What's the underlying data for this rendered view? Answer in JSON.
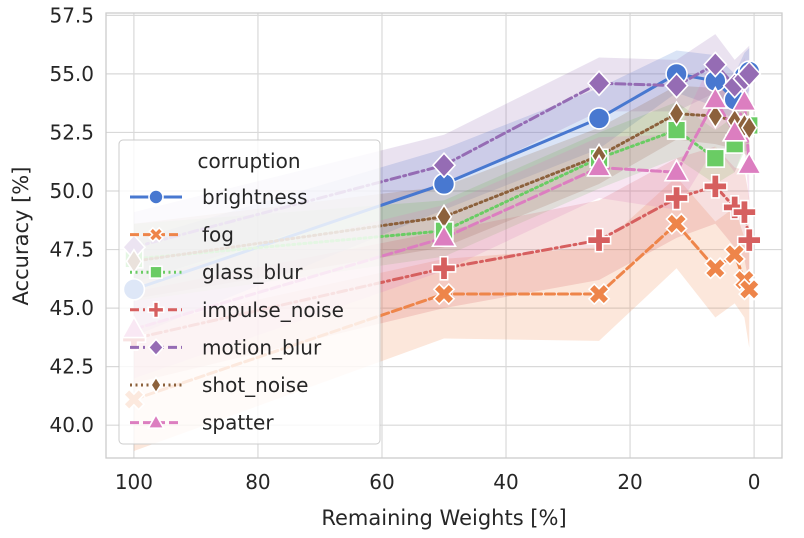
{
  "chart_data": {
    "type": "line",
    "xlabel": "Remaining Weights [%]",
    "ylabel": "Accuracy [%]",
    "x_reversed": true,
    "xlim": [
      104.5,
      -4.5
    ],
    "ylim": [
      38.6,
      57.6
    ],
    "xticks": [
      "100",
      "80",
      "60",
      "40",
      "20",
      "0"
    ],
    "xtick_values": [
      100,
      80,
      60,
      40,
      20,
      0
    ],
    "yticks": [
      "40.0",
      "42.5",
      "45.0",
      "47.5",
      "50.0",
      "52.5",
      "55.0",
      "57.5"
    ],
    "ytick_values": [
      40.0,
      42.5,
      45.0,
      47.5,
      50.0,
      52.5,
      55.0,
      57.5
    ],
    "grid": true,
    "legend_title": "corruption",
    "legend_position": "center-left",
    "x": [
      100,
      50,
      25,
      12.5,
      6.25,
      3.13,
      1.56,
      0.78
    ],
    "series": [
      {
        "name": "brightness",
        "color": "#4878d0",
        "dash": "solid",
        "marker": "circle",
        "values": [
          45.8,
          50.3,
          53.1,
          55.0,
          54.7,
          53.9,
          54.9,
          55.1
        ],
        "ci_low": [
          43.8,
          49.2,
          51.8,
          54.2,
          53.6,
          53.0,
          53.9,
          54.3
        ],
        "ci_high": [
          47.9,
          51.8,
          54.4,
          56.0,
          55.8,
          55.0,
          55.9,
          56.1
        ]
      },
      {
        "name": "fog",
        "color": "#ee854a",
        "dash": "dashed",
        "marker": "x",
        "values": [
          41.1,
          45.6,
          45.6,
          48.6,
          46.7,
          47.3,
          46.2,
          45.8
        ],
        "ci_low": [
          38.9,
          43.7,
          43.6,
          46.7,
          44.6,
          45.2,
          44.6,
          43.3
        ],
        "ci_high": [
          44.2,
          47.1,
          47.6,
          50.6,
          48.7,
          49.3,
          48.0,
          47.6
        ]
      },
      {
        "name": "glass_blur",
        "color": "#6acc64",
        "dash": "dotted",
        "marker": "square",
        "values": [
          47.1,
          48.3,
          51.4,
          52.6,
          51.4,
          52.0,
          52.7,
          52.8
        ],
        "ci_low": [
          45.3,
          47.2,
          50.1,
          51.4,
          50.3,
          50.8,
          51.7,
          51.7
        ],
        "ci_high": [
          48.6,
          49.6,
          52.5,
          53.8,
          52.6,
          53.2,
          53.9,
          53.9
        ]
      },
      {
        "name": "impulse_noise",
        "color": "#d65f5f",
        "dash": "dashdot",
        "marker": "plus",
        "values": [
          43.7,
          46.7,
          47.9,
          49.7,
          50.2,
          49.3,
          49.1,
          47.9
        ],
        "ci_low": [
          41.8,
          45.0,
          46.2,
          48.0,
          48.6,
          47.6,
          47.1,
          46.0
        ],
        "ci_high": [
          45.7,
          48.3,
          49.6,
          51.4,
          51.9,
          51.0,
          50.9,
          49.7
        ]
      },
      {
        "name": "motion_blur",
        "color": "#956cb4",
        "dash": "dashdot",
        "marker": "diamond",
        "values": [
          47.6,
          51.1,
          54.6,
          54.5,
          55.4,
          54.5,
          54.8,
          55.0
        ],
        "ci_low": [
          46.1,
          50.2,
          53.4,
          53.4,
          54.2,
          53.5,
          53.6,
          53.9
        ],
        "ci_high": [
          49.1,
          52.4,
          55.7,
          55.6,
          56.7,
          55.6,
          56.0,
          56.2
        ]
      },
      {
        "name": "shot_noise",
        "color": "#8c613c",
        "dash": "dotted",
        "marker": "thin_diamond",
        "values": [
          47.0,
          48.9,
          51.5,
          53.3,
          53.2,
          53.0,
          52.8,
          52.7
        ],
        "ci_low": [
          45.4,
          47.6,
          50.3,
          52.2,
          52.0,
          51.8,
          51.6,
          51.4
        ],
        "ci_high": [
          48.6,
          50.2,
          52.7,
          54.5,
          54.4,
          54.2,
          54.0,
          53.9
        ]
      },
      {
        "name": "spatter",
        "color": "#dc7ec0",
        "dash": "dashed",
        "marker": "triangle",
        "values": [
          44.1,
          48.0,
          51.0,
          50.8,
          53.9,
          52.5,
          53.8,
          51.1
        ],
        "ci_low": [
          42.0,
          46.6,
          49.7,
          49.2,
          51.9,
          50.8,
          51.9,
          49.4
        ],
        "ci_high": [
          46.2,
          49.4,
          52.3,
          52.4,
          55.9,
          54.2,
          55.7,
          53.1
        ]
      }
    ]
  }
}
